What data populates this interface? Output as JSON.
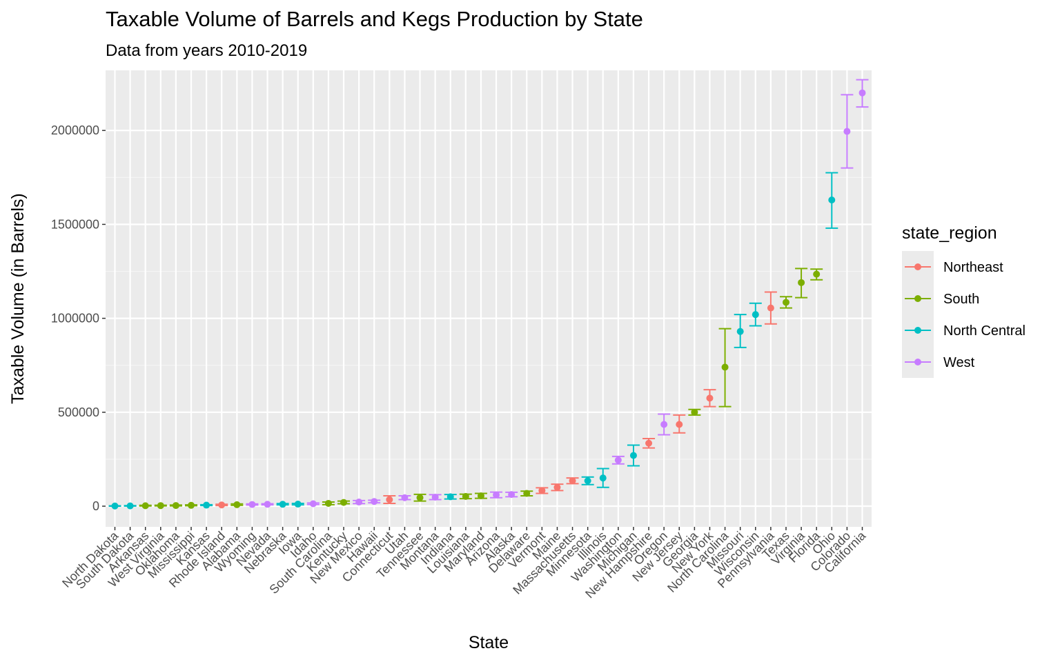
{
  "chart_data": {
    "type": "scatter",
    "title": "Taxable Volume of Barrels and Kegs Production by State",
    "subtitle": "Data from years 2010-2019",
    "xlabel": "State",
    "ylabel": "Taxable Volume (in Barrels)",
    "ylim": [
      -110000,
      2320000
    ],
    "yticks": [
      0,
      500000,
      1000000,
      1500000,
      2000000
    ],
    "yticks_labels": [
      "0",
      "500000",
      "1000000",
      "1500000",
      "2000000"
    ],
    "grid": true,
    "legend": {
      "title": "state_region",
      "position": "right",
      "entries": [
        {
          "label": "Northeast",
          "color": "#F8766D"
        },
        {
          "label": "South",
          "color": "#7CAE00"
        },
        {
          "label": "North Central",
          "color": "#00BFC4"
        },
        {
          "label": "West",
          "color": "#C77CFF"
        }
      ]
    },
    "points": [
      {
        "state": "North Dakota",
        "region": "North Central",
        "value": 1000,
        "low": 0,
        "high": 2000
      },
      {
        "state": "South Dakota",
        "region": "North Central",
        "value": 1500,
        "low": 500,
        "high": 3000
      },
      {
        "state": "Arkansas",
        "region": "South",
        "value": 2500,
        "low": 1000,
        "high": 4500
      },
      {
        "state": "West Virginia",
        "region": "South",
        "value": 3000,
        "low": 1500,
        "high": 5000
      },
      {
        "state": "Oklahoma",
        "region": "South",
        "value": 3500,
        "low": 1500,
        "high": 6000
      },
      {
        "state": "Mississippi",
        "region": "South",
        "value": 4500,
        "low": 2500,
        "high": 7000
      },
      {
        "state": "Kansas",
        "region": "North Central",
        "value": 5500,
        "low": 3500,
        "high": 8000
      },
      {
        "state": "Rhode Island",
        "region": "Northeast",
        "value": 6500,
        "low": 3500,
        "high": 10000
      },
      {
        "state": "Alabama",
        "region": "South",
        "value": 8000,
        "low": 4500,
        "high": 12000
      },
      {
        "state": "Wyoming",
        "region": "West",
        "value": 9000,
        "low": 6000,
        "high": 12000
      },
      {
        "state": "Nevada",
        "region": "West",
        "value": 10000,
        "low": 7000,
        "high": 13000
      },
      {
        "state": "Nebraska",
        "region": "North Central",
        "value": 10000,
        "low": 7000,
        "high": 14000
      },
      {
        "state": "Iowa",
        "region": "North Central",
        "value": 11000,
        "low": 7000,
        "high": 15000
      },
      {
        "state": "Idaho",
        "region": "West",
        "value": 13000,
        "low": 9000,
        "high": 17000
      },
      {
        "state": "South Carolina",
        "region": "South",
        "value": 15000,
        "low": 8000,
        "high": 22000
      },
      {
        "state": "Kentucky",
        "region": "South",
        "value": 20000,
        "low": 13000,
        "high": 27000
      },
      {
        "state": "New Mexico",
        "region": "West",
        "value": 22000,
        "low": 14000,
        "high": 30000
      },
      {
        "state": "Hawaii",
        "region": "West",
        "value": 25000,
        "low": 18000,
        "high": 32000
      },
      {
        "state": "Connecticut",
        "region": "Northeast",
        "value": 35000,
        "low": 15000,
        "high": 55000
      },
      {
        "state": "Utah",
        "region": "West",
        "value": 45000,
        "low": 35000,
        "high": 55000
      },
      {
        "state": "Tennessee",
        "region": "South",
        "value": 45000,
        "low": 27000,
        "high": 63000
      },
      {
        "state": "Montana",
        "region": "West",
        "value": 48000,
        "low": 35000,
        "high": 61000
      },
      {
        "state": "Indiana",
        "region": "North Central",
        "value": 50000,
        "low": 38000,
        "high": 62000
      },
      {
        "state": "Louisiana",
        "region": "South",
        "value": 52000,
        "low": 40000,
        "high": 64000
      },
      {
        "state": "Maryland",
        "region": "South",
        "value": 55000,
        "low": 42000,
        "high": 68000
      },
      {
        "state": "Arizona",
        "region": "West",
        "value": 60000,
        "low": 45000,
        "high": 75000
      },
      {
        "state": "Alaska",
        "region": "West",
        "value": 62000,
        "low": 50000,
        "high": 74000
      },
      {
        "state": "Delaware",
        "region": "South",
        "value": 68000,
        "low": 55000,
        "high": 80000
      },
      {
        "state": "Vermont",
        "region": "Northeast",
        "value": 83000,
        "low": 68000,
        "high": 98000
      },
      {
        "state": "Maine",
        "region": "Northeast",
        "value": 100000,
        "low": 83000,
        "high": 117000
      },
      {
        "state": "Massachusetts",
        "region": "Northeast",
        "value": 135000,
        "low": 120000,
        "high": 150000
      },
      {
        "state": "Minnesota",
        "region": "North Central",
        "value": 135000,
        "low": 115000,
        "high": 155000
      },
      {
        "state": "Illinois",
        "region": "North Central",
        "value": 150000,
        "low": 100000,
        "high": 200000
      },
      {
        "state": "Washington",
        "region": "West",
        "value": 245000,
        "low": 225000,
        "high": 265000
      },
      {
        "state": "Michigan",
        "region": "North Central",
        "value": 270000,
        "low": 215000,
        "high": 325000
      },
      {
        "state": "New Hampshire",
        "region": "Northeast",
        "value": 335000,
        "low": 310000,
        "high": 360000
      },
      {
        "state": "Oregon",
        "region": "West",
        "value": 435000,
        "low": 380000,
        "high": 490000
      },
      {
        "state": "New Jersey",
        "region": "Northeast",
        "value": 435000,
        "low": 390000,
        "high": 485000
      },
      {
        "state": "Georgia",
        "region": "South",
        "value": 500000,
        "low": 485000,
        "high": 515000
      },
      {
        "state": "New York",
        "region": "Northeast",
        "value": 575000,
        "low": 530000,
        "high": 620000
      },
      {
        "state": "North Carolina",
        "region": "South",
        "value": 740000,
        "low": 530000,
        "high": 945000
      },
      {
        "state": "Missouri",
        "region": "North Central",
        "value": 930000,
        "low": 845000,
        "high": 1020000
      },
      {
        "state": "Wisconsin",
        "region": "North Central",
        "value": 1020000,
        "low": 960000,
        "high": 1080000
      },
      {
        "state": "Pennsylvania",
        "region": "Northeast",
        "value": 1055000,
        "low": 970000,
        "high": 1140000
      },
      {
        "state": "Texas",
        "region": "South",
        "value": 1085000,
        "low": 1055000,
        "high": 1115000
      },
      {
        "state": "Virginia",
        "region": "South",
        "value": 1190000,
        "low": 1110000,
        "high": 1265000
      },
      {
        "state": "Florida",
        "region": "South",
        "value": 1235000,
        "low": 1205000,
        "high": 1262000
      },
      {
        "state": "Ohio",
        "region": "North Central",
        "value": 1630000,
        "low": 1480000,
        "high": 1775000
      },
      {
        "state": "Colorado",
        "region": "West",
        "value": 1995000,
        "low": 1800000,
        "high": 2190000
      },
      {
        "state": "California",
        "region": "West",
        "value": 2200000,
        "low": 2125000,
        "high": 2270000
      }
    ]
  }
}
